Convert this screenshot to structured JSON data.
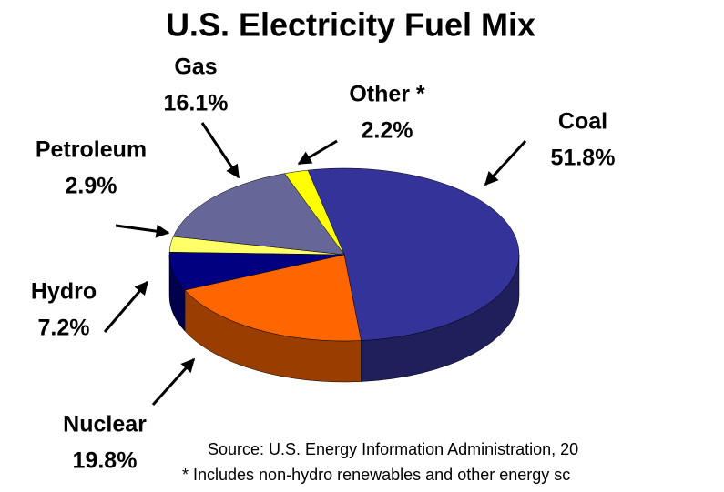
{
  "chart_data": {
    "type": "pie",
    "title": "U.S. Electricity Fuel Mix",
    "categories": [
      "Coal",
      "Nuclear",
      "Hydro",
      "Petroleum",
      "Gas",
      "Other *"
    ],
    "values": [
      51.8,
      19.8,
      7.2,
      2.9,
      16.1,
      2.2
    ],
    "value_labels": [
      "51.8%",
      "19.8%",
      "7.2%",
      "2.9%",
      "16.1%",
      "2.2%"
    ],
    "colors": [
      "#333399",
      "#ff6600",
      "#000080",
      "#ffff66",
      "#666699",
      "#ffff00"
    ],
    "notes": [
      "Source: U.S. Energy Information Administration, 20",
      "* Includes non-hydro renewables and other energy sc"
    ]
  }
}
